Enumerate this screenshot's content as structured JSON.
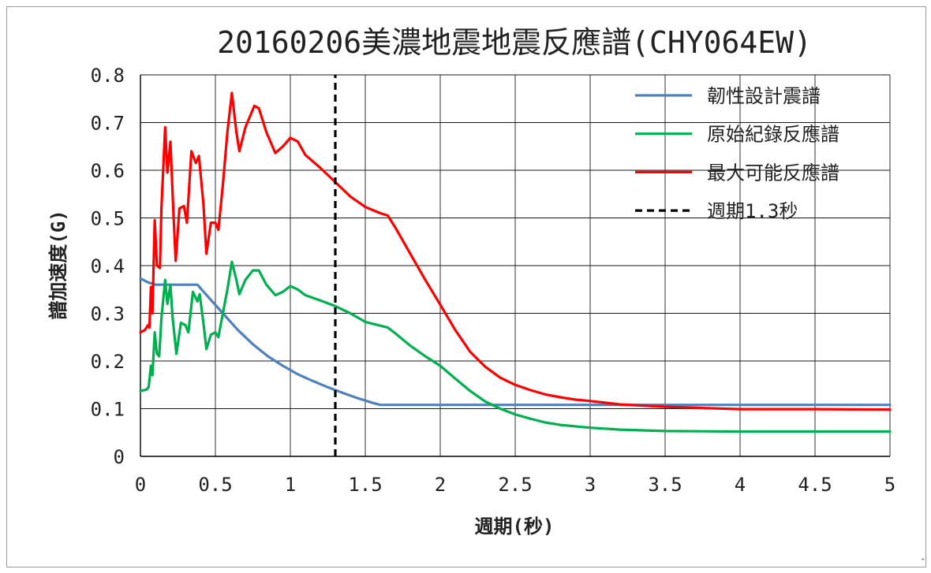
{
  "chart_data": {
    "type": "line",
    "title": "20160206美濃地震地震反應譜(CHY064EW)",
    "xlabel": "週期(秒)",
    "ylabel": "譜加速度(G)",
    "xlim": [
      0,
      5
    ],
    "ylim": [
      0,
      0.8
    ],
    "x_ticks": [
      "0",
      "0.5",
      "1",
      "1.5",
      "2",
      "2.5",
      "3",
      "3.5",
      "4",
      "4.5",
      "5"
    ],
    "y_ticks": [
      "0",
      "0.1",
      "0.2",
      "0.3",
      "0.4",
      "0.5",
      "0.6",
      "0.7",
      "0.8"
    ],
    "grid": true,
    "legend_position": "top-right",
    "series": [
      {
        "name": "韌性設計震譜",
        "color": "#4f81bd",
        "dash": false,
        "points": [
          [
            0,
            0.373
          ],
          [
            0.05,
            0.365
          ],
          [
            0.1,
            0.36
          ],
          [
            0.2,
            0.36
          ],
          [
            0.3,
            0.36
          ],
          [
            0.38,
            0.36
          ],
          [
            0.45,
            0.335
          ],
          [
            0.55,
            0.3
          ],
          [
            0.65,
            0.265
          ],
          [
            0.75,
            0.235
          ],
          [
            0.85,
            0.21
          ],
          [
            0.95,
            0.19
          ],
          [
            1.05,
            0.172
          ],
          [
            1.15,
            0.158
          ],
          [
            1.25,
            0.145
          ],
          [
            1.35,
            0.133
          ],
          [
            1.45,
            0.122
          ],
          [
            1.55,
            0.112
          ],
          [
            1.6,
            0.108
          ],
          [
            2,
            0.108
          ],
          [
            3,
            0.108
          ],
          [
            4,
            0.108
          ],
          [
            5,
            0.108
          ]
        ]
      },
      {
        "name": "原始紀錄反應譜",
        "color": "#00b050",
        "dash": false,
        "points": [
          [
            0,
            0.137
          ],
          [
            0.04,
            0.14
          ],
          [
            0.055,
            0.145
          ],
          [
            0.07,
            0.19
          ],
          [
            0.08,
            0.17
          ],
          [
            0.095,
            0.26
          ],
          [
            0.11,
            0.215
          ],
          [
            0.125,
            0.21
          ],
          [
            0.14,
            0.29
          ],
          [
            0.165,
            0.37
          ],
          [
            0.18,
            0.32
          ],
          [
            0.2,
            0.36
          ],
          [
            0.215,
            0.29
          ],
          [
            0.24,
            0.215
          ],
          [
            0.27,
            0.28
          ],
          [
            0.3,
            0.275
          ],
          [
            0.32,
            0.26
          ],
          [
            0.35,
            0.345
          ],
          [
            0.38,
            0.325
          ],
          [
            0.395,
            0.34
          ],
          [
            0.42,
            0.28
          ],
          [
            0.44,
            0.225
          ],
          [
            0.47,
            0.255
          ],
          [
            0.5,
            0.26
          ],
          [
            0.52,
            0.25
          ],
          [
            0.55,
            0.3
          ],
          [
            0.58,
            0.35
          ],
          [
            0.61,
            0.408
          ],
          [
            0.64,
            0.37
          ],
          [
            0.66,
            0.34
          ],
          [
            0.7,
            0.37
          ],
          [
            0.75,
            0.39
          ],
          [
            0.79,
            0.39
          ],
          [
            0.84,
            0.36
          ],
          [
            0.9,
            0.338
          ],
          [
            0.95,
            0.345
          ],
          [
            1.0,
            0.357
          ],
          [
            1.05,
            0.35
          ],
          [
            1.1,
            0.338
          ],
          [
            1.2,
            0.327
          ],
          [
            1.3,
            0.315
          ],
          [
            1.4,
            0.3
          ],
          [
            1.5,
            0.282
          ],
          [
            1.6,
            0.274
          ],
          [
            1.65,
            0.27
          ],
          [
            1.7,
            0.258
          ],
          [
            1.8,
            0.232
          ],
          [
            1.9,
            0.21
          ],
          [
            2.0,
            0.19
          ],
          [
            2.1,
            0.163
          ],
          [
            2.2,
            0.137
          ],
          [
            2.3,
            0.115
          ],
          [
            2.4,
            0.1
          ],
          [
            2.5,
            0.088
          ],
          [
            2.6,
            0.079
          ],
          [
            2.7,
            0.071
          ],
          [
            2.8,
            0.066
          ],
          [
            3.0,
            0.06
          ],
          [
            3.2,
            0.056
          ],
          [
            3.5,
            0.053
          ],
          [
            4.0,
            0.052
          ],
          [
            4.5,
            0.052
          ],
          [
            5.0,
            0.052
          ]
        ]
      },
      {
        "name": "最大可能反應譜",
        "color": "#ff0000",
        "dash": false,
        "points": [
          [
            0,
            0.26
          ],
          [
            0.03,
            0.265
          ],
          [
            0.05,
            0.275
          ],
          [
            0.06,
            0.27
          ],
          [
            0.07,
            0.355
          ],
          [
            0.08,
            0.3
          ],
          [
            0.095,
            0.495
          ],
          [
            0.11,
            0.4
          ],
          [
            0.13,
            0.395
          ],
          [
            0.14,
            0.52
          ],
          [
            0.165,
            0.69
          ],
          [
            0.18,
            0.595
          ],
          [
            0.2,
            0.66
          ],
          [
            0.22,
            0.51
          ],
          [
            0.235,
            0.41
          ],
          [
            0.26,
            0.52
          ],
          [
            0.29,
            0.525
          ],
          [
            0.31,
            0.49
          ],
          [
            0.34,
            0.64
          ],
          [
            0.37,
            0.615
          ],
          [
            0.39,
            0.63
          ],
          [
            0.42,
            0.53
          ],
          [
            0.44,
            0.425
          ],
          [
            0.47,
            0.49
          ],
          [
            0.5,
            0.49
          ],
          [
            0.52,
            0.475
          ],
          [
            0.55,
            0.57
          ],
          [
            0.58,
            0.68
          ],
          [
            0.61,
            0.762
          ],
          [
            0.64,
            0.68
          ],
          [
            0.66,
            0.64
          ],
          [
            0.7,
            0.69
          ],
          [
            0.76,
            0.735
          ],
          [
            0.79,
            0.73
          ],
          [
            0.84,
            0.68
          ],
          [
            0.9,
            0.636
          ],
          [
            0.95,
            0.65
          ],
          [
            1.0,
            0.668
          ],
          [
            1.05,
            0.66
          ],
          [
            1.1,
            0.632
          ],
          [
            1.2,
            0.605
          ],
          [
            1.3,
            0.575
          ],
          [
            1.4,
            0.545
          ],
          [
            1.5,
            0.523
          ],
          [
            1.6,
            0.51
          ],
          [
            1.65,
            0.505
          ],
          [
            1.7,
            0.48
          ],
          [
            1.8,
            0.425
          ],
          [
            1.9,
            0.37
          ],
          [
            2.0,
            0.318
          ],
          [
            2.1,
            0.265
          ],
          [
            2.2,
            0.219
          ],
          [
            2.3,
            0.188
          ],
          [
            2.4,
            0.165
          ],
          [
            2.5,
            0.15
          ],
          [
            2.6,
            0.139
          ],
          [
            2.7,
            0.13
          ],
          [
            2.8,
            0.124
          ],
          [
            2.9,
            0.119
          ],
          [
            3.0,
            0.116
          ],
          [
            3.2,
            0.109
          ],
          [
            3.5,
            0.104
          ],
          [
            4.0,
            0.099
          ],
          [
            4.5,
            0.099
          ],
          [
            5.0,
            0.098
          ]
        ]
      },
      {
        "name": "週期1.3秒",
        "color": "#000000",
        "dash": true,
        "points": [
          [
            1.3,
            0
          ],
          [
            1.3,
            0.8
          ]
        ]
      }
    ]
  }
}
